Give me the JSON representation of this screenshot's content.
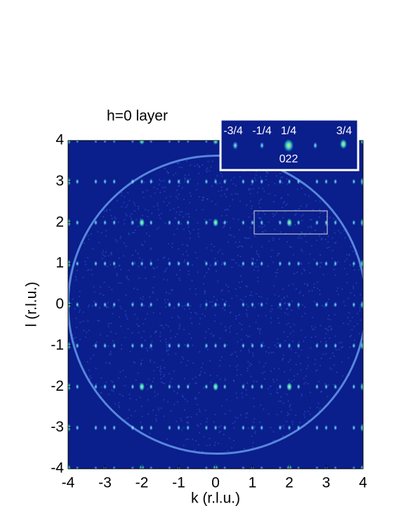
{
  "chart_data": {
    "type": "intensity-map",
    "title": "h=0 layer",
    "x_label": "k (r.l.u.)",
    "y_label": "l (r.l.u.)",
    "xlim": [
      -4,
      4
    ],
    "ylim": [
      -4,
      4
    ],
    "xticks": [
      -4,
      -3,
      -2,
      -1,
      0,
      1,
      2,
      3,
      4
    ],
    "yticks": [
      -4,
      -3,
      -2,
      -1,
      0,
      1,
      2,
      3,
      4
    ],
    "inset": {
      "labels": [
        "-3/4",
        "-1/4",
        "1/4",
        "3/4"
      ],
      "peak_label": "022"
    },
    "background_color": "#0a1e8c"
  }
}
